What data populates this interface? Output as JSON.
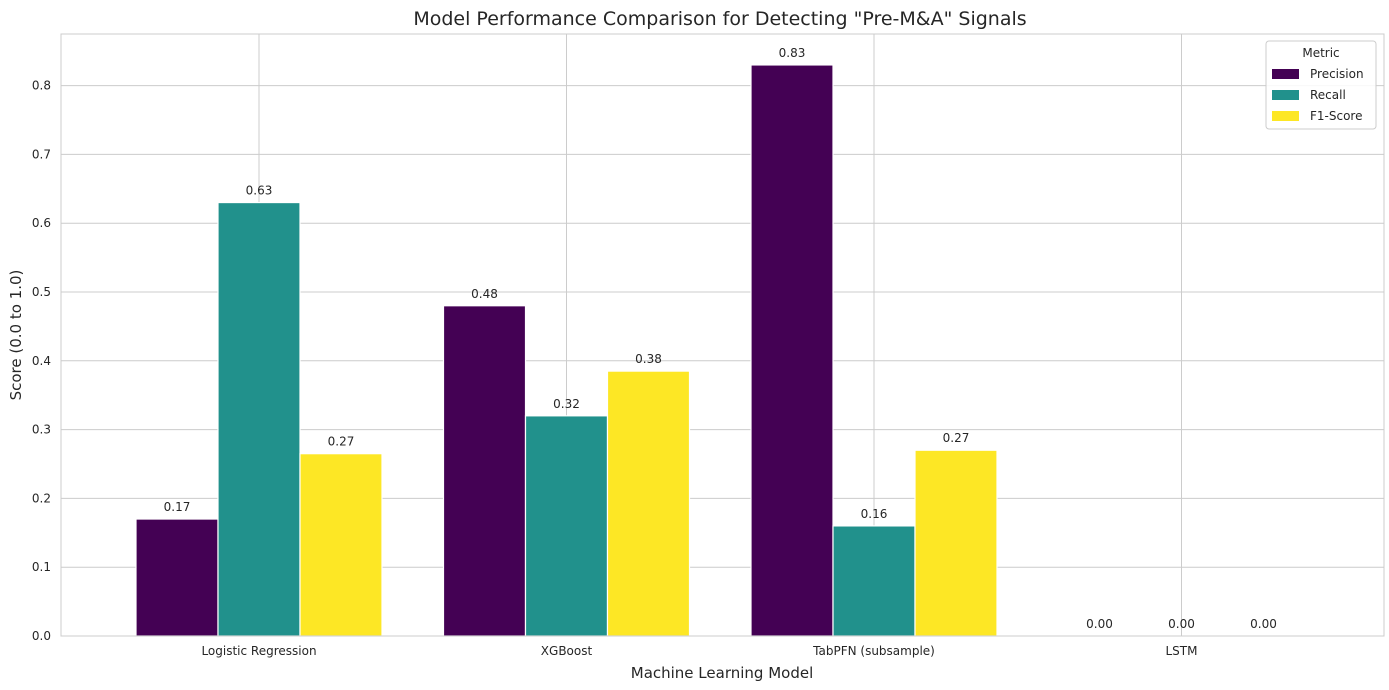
{
  "chart_data": {
    "type": "bar",
    "title": "Model Performance Comparison for Detecting \"Pre-M&A\" Signals",
    "xlabel": "Machine Learning Model",
    "ylabel": "Score (0.0 to 1.0)",
    "categories": [
      "Logistic Regression",
      "XGBoost",
      "TabPFN (subsample)",
      "LSTM"
    ],
    "series": [
      {
        "name": "Precision",
        "color": "#440154",
        "values": [
          0.17,
          0.48,
          0.83,
          0.0
        ],
        "value_labels": [
          "0.17",
          "0.48",
          "0.83",
          "0.00"
        ]
      },
      {
        "name": "Recall",
        "color": "#21918c",
        "values": [
          0.63,
          0.32,
          0.16,
          0.0
        ],
        "value_labels": [
          "0.63",
          "0.32",
          "0.16",
          "0.00"
        ]
      },
      {
        "name": "F1-Score",
        "color": "#fde725",
        "values": [
          0.265,
          0.385,
          0.27,
          0.0
        ],
        "value_labels": [
          "0.27",
          "0.38",
          "0.27",
          "0.00"
        ]
      }
    ],
    "ylim": [
      0,
      0.875
    ],
    "yticks": [
      0.0,
      0.1,
      0.2,
      0.3,
      0.4,
      0.5,
      0.6,
      0.7,
      0.8
    ],
    "ytick_labels": [
      "0.0",
      "0.1",
      "0.2",
      "0.3",
      "0.4",
      "0.5",
      "0.6",
      "0.7",
      "0.8"
    ],
    "grid": true,
    "legend": {
      "title": "Metric",
      "placement": "top-right"
    }
  }
}
